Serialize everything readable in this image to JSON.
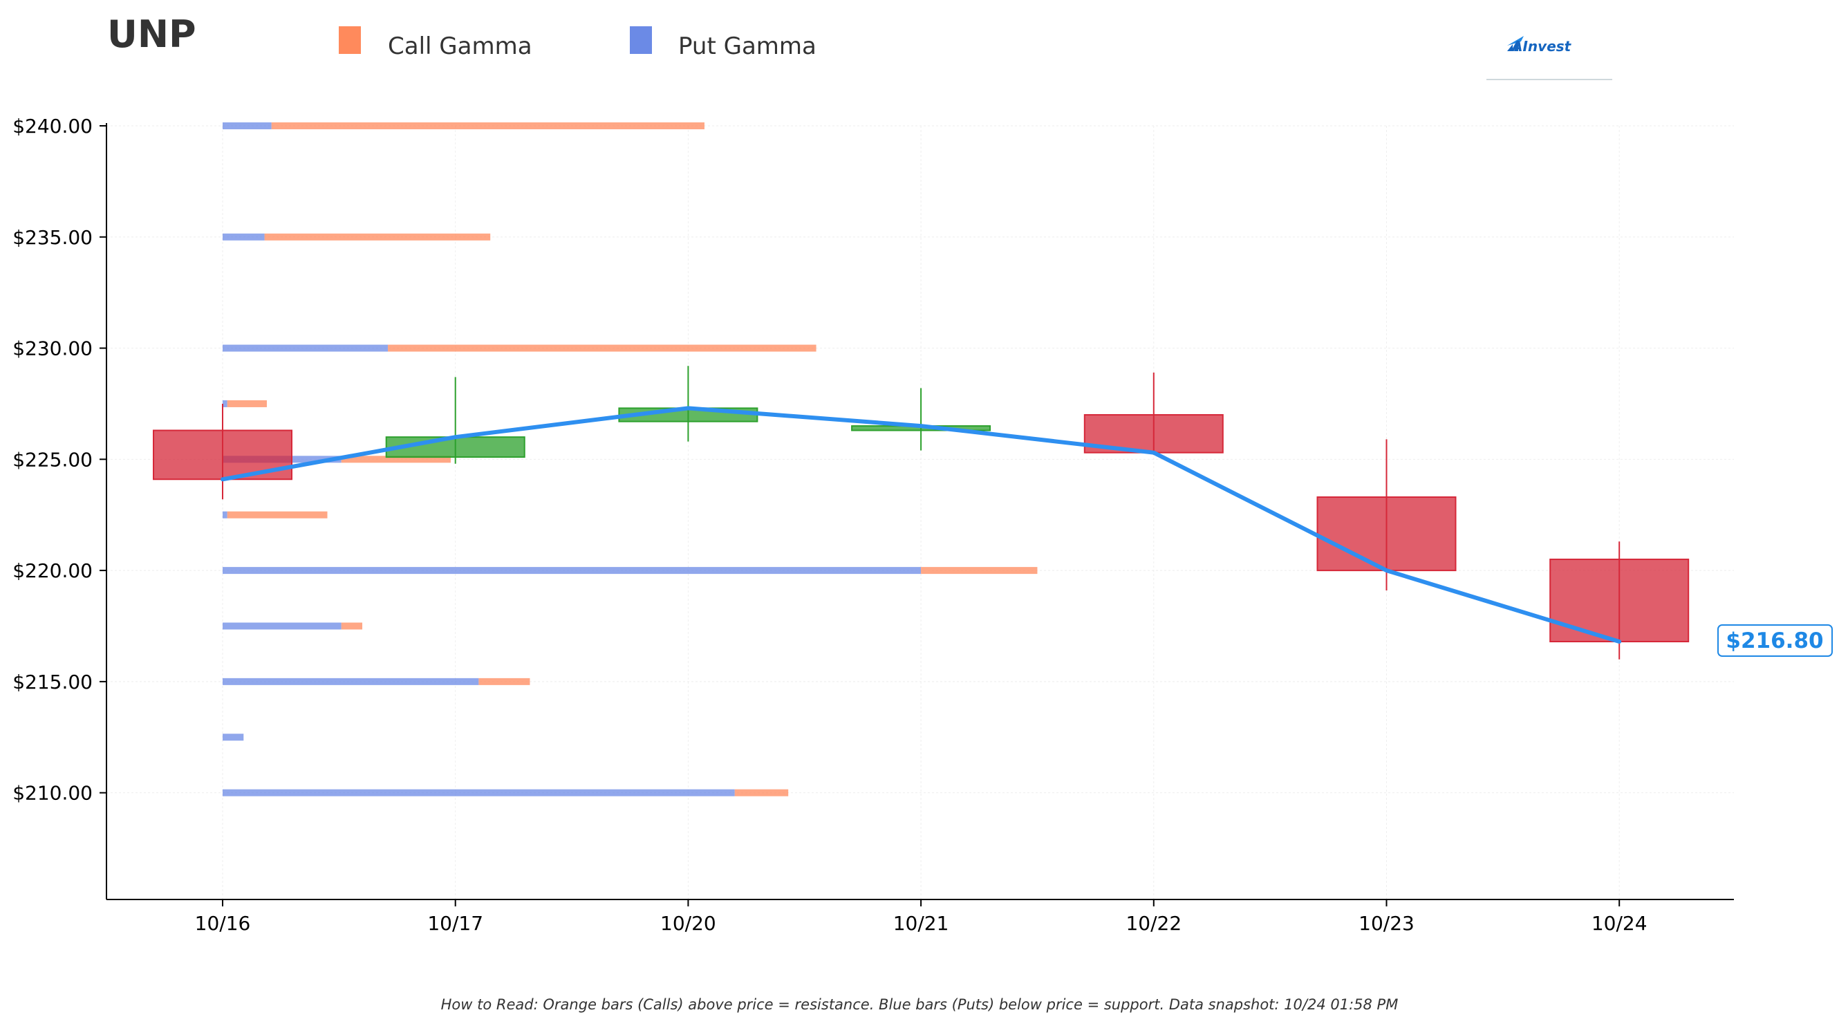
{
  "ticker": "UNP",
  "legend": [
    {
      "label": "Call Gamma",
      "color": "#ff8a5c"
    },
    {
      "label": "Put Gamma",
      "color": "#6b8ae6"
    }
  ],
  "logo": {
    "text": "AInvest",
    "icon": "chart-arrow-icon"
  },
  "current_price_label": "$216.80",
  "note": "How to Read: Orange bars (Calls) above price = resistance. Blue bars (Puts) below price = support. Data snapshot: 10/24 01:58 PM",
  "colors": {
    "up": "#2ca02c",
    "down": "#d62839",
    "line": "#2e8ff0",
    "call": "#ff8a5c",
    "put": "#6b8ae6"
  },
  "chart_data": {
    "type": "candlestick",
    "categories": [
      "10/16",
      "10/17",
      "10/20",
      "10/21",
      "10/22",
      "10/23",
      "10/24"
    ],
    "y_ticks": [
      {
        "value": 210,
        "label": "$210.00"
      },
      {
        "value": 215,
        "label": "$215.00"
      },
      {
        "value": 220,
        "label": "$220.00"
      },
      {
        "value": 225,
        "label": "$225.00"
      },
      {
        "value": 230,
        "label": "$230.00"
      },
      {
        "value": 235,
        "label": "$235.00"
      },
      {
        "value": 240,
        "label": "$240.00"
      }
    ],
    "ylim": [
      205.2,
      240.0
    ],
    "grid": true,
    "candles": [
      {
        "date": "10/16",
        "open": 226.3,
        "high": 227.5,
        "low": 223.2,
        "close": 224.1
      },
      {
        "date": "10/17",
        "open": 225.1,
        "high": 228.7,
        "low": 224.8,
        "close": 226.0
      },
      {
        "date": "10/20",
        "open": 226.7,
        "high": 229.2,
        "low": 225.8,
        "close": 227.3
      },
      {
        "date": "10/21",
        "open": 226.3,
        "high": 228.2,
        "low": 225.4,
        "close": 226.5
      },
      {
        "date": "10/22",
        "open": 227.0,
        "high": 228.9,
        "low": 225.2,
        "close": 225.3
      },
      {
        "date": "10/23",
        "open": 223.3,
        "high": 225.9,
        "low": 219.1,
        "close": 220.0
      },
      {
        "date": "10/24",
        "open": 220.5,
        "high": 221.3,
        "low": 216.0,
        "close": 216.8
      }
    ],
    "close_line": [
      224.1,
      226.0,
      227.3,
      226.5,
      225.3,
      220.0,
      216.8
    ],
    "gamma_units": "x-axis index units from 10/16",
    "gamma": [
      {
        "strike": 240.0,
        "put": 0.21,
        "call": 1.86
      },
      {
        "strike": 235.0,
        "put": 0.18,
        "call": 0.97
      },
      {
        "strike": 230.0,
        "put": 0.71,
        "call": 1.84
      },
      {
        "strike": 227.5,
        "put": 0.02,
        "call": 0.17
      },
      {
        "strike": 225.0,
        "put": 0.51,
        "call": 0.47
      },
      {
        "strike": 222.5,
        "put": 0.02,
        "call": 0.43
      },
      {
        "strike": 220.0,
        "put": 3.0,
        "call": 0.5
      },
      {
        "strike": 217.5,
        "put": 0.51,
        "call": 0.09
      },
      {
        "strike": 215.0,
        "put": 1.1,
        "call": 0.22
      },
      {
        "strike": 212.5,
        "put": 0.09,
        "call": 0.0
      },
      {
        "strike": 210.0,
        "put": 2.2,
        "call": 0.23
      }
    ]
  }
}
